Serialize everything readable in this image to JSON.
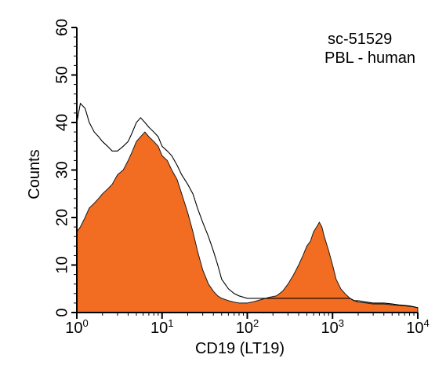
{
  "chart_data": {
    "type": "area",
    "xscale": "log",
    "xlim": [
      1,
      10000
    ],
    "ylim": [
      0,
      60
    ],
    "xlabel": "CD19 (LT19)",
    "ylabel": "Counts",
    "x_ticks": [
      {
        "value": 1,
        "base": "10",
        "exp": "0"
      },
      {
        "value": 10,
        "base": "10",
        "exp": "1"
      },
      {
        "value": 100,
        "base": "10",
        "exp": "2"
      },
      {
        "value": 1000,
        "base": "10",
        "exp": "3"
      },
      {
        "value": 10000,
        "base": "10",
        "exp": "4"
      }
    ],
    "y_ticks": [
      "0",
      "10",
      "20",
      "30",
      "40",
      "50",
      "60"
    ],
    "grid": false,
    "legend": "none",
    "annotation_lines": [
      "sc-51529",
      "PBL - human"
    ],
    "series": [
      {
        "style": "filled",
        "color": "#f26d21",
        "x": [
          1.0,
          1.1,
          1.25,
          1.4,
          1.6,
          1.8,
          2.0,
          2.3,
          2.6,
          3.0,
          3.5,
          4.0,
          4.5,
          5.0,
          5.6,
          6.3,
          7.0,
          8.0,
          9.0,
          10.0,
          11.5,
          13.0,
          15.0,
          17.0,
          20.0,
          23.0,
          26.0,
          30.0,
          35.0,
          40.0,
          45.0,
          50.0,
          60.0,
          70.0,
          80.0,
          100.0,
          120.0,
          150.0,
          180.0,
          220.0,
          260.0,
          300.0,
          350.0,
          400.0,
          450.0,
          500.0,
          550.0,
          600.0,
          650.0,
          700.0,
          750.0,
          800.0,
          900.0,
          1000.0,
          1100.0,
          1250.0,
          1400.0,
          1600.0,
          1800.0,
          2000.0,
          2500.0,
          3000.0,
          4000.0,
          5000.0,
          6000.0,
          7000.0,
          8000.0,
          9000.0,
          10000.0
        ],
        "y": [
          17,
          18,
          20,
          22,
          23,
          24,
          25,
          26,
          27,
          29,
          30,
          32,
          34,
          36,
          37,
          38,
          37,
          36,
          35,
          33,
          32,
          30,
          28,
          25,
          21,
          17,
          13,
          9,
          6,
          4.5,
          3.5,
          3,
          2.5,
          2.2,
          2,
          2,
          2.3,
          2.8,
          3.2,
          3.5,
          4.5,
          6,
          8,
          10,
          12,
          14,
          15,
          17,
          18,
          19,
          18,
          16,
          13,
          10,
          7,
          5,
          4,
          3,
          2.5,
          2.2,
          2,
          1.8,
          1.8,
          1.6,
          1.5,
          1.4,
          1.3,
          1.2,
          1
        ]
      },
      {
        "style": "outline",
        "color": "#000000",
        "x": [
          1.0,
          1.1,
          1.25,
          1.4,
          1.6,
          1.8,
          2.0,
          2.3,
          2.6,
          3.0,
          3.5,
          4.0,
          4.5,
          5.0,
          5.6,
          6.3,
          7.0,
          8.0,
          9.0,
          10.0,
          11.5,
          13.0,
          15.0,
          17.0,
          20.0,
          23.0,
          26.0,
          30.0,
          35.0,
          40.0,
          45.0,
          50.0,
          60.0,
          70.0,
          80.0,
          100.0,
          120.0,
          150.0,
          180.0,
          220.0,
          260.0,
          300.0,
          350.0,
          400.0,
          450.0,
          500.0,
          550.0,
          600.0,
          650.0,
          700.0,
          750.0,
          800.0,
          900.0,
          1000.0,
          1100.0,
          1250.0,
          1400.0,
          1600.0,
          1800.0,
          2000.0,
          2500.0,
          3000.0,
          4000.0,
          5000.0,
          6000.0,
          7000.0,
          8000.0,
          9000.0,
          10000.0
        ],
        "y": [
          40,
          44,
          43,
          40,
          38,
          37,
          36,
          35,
          34,
          34,
          35,
          36,
          38,
          40,
          41,
          40,
          39,
          38,
          37,
          35,
          34,
          33,
          31,
          29,
          27,
          25,
          22,
          19,
          16,
          13,
          10,
          7,
          5,
          4,
          3.5,
          3,
          3,
          3,
          3,
          3,
          3,
          3,
          3,
          3,
          3,
          3,
          3,
          3,
          3,
          3,
          3,
          3,
          3,
          3,
          3,
          3,
          3,
          3,
          2.5,
          2.5,
          2.2,
          2,
          2,
          1.8,
          1.6,
          1.5,
          1.4,
          1.2,
          1
        ]
      }
    ]
  }
}
